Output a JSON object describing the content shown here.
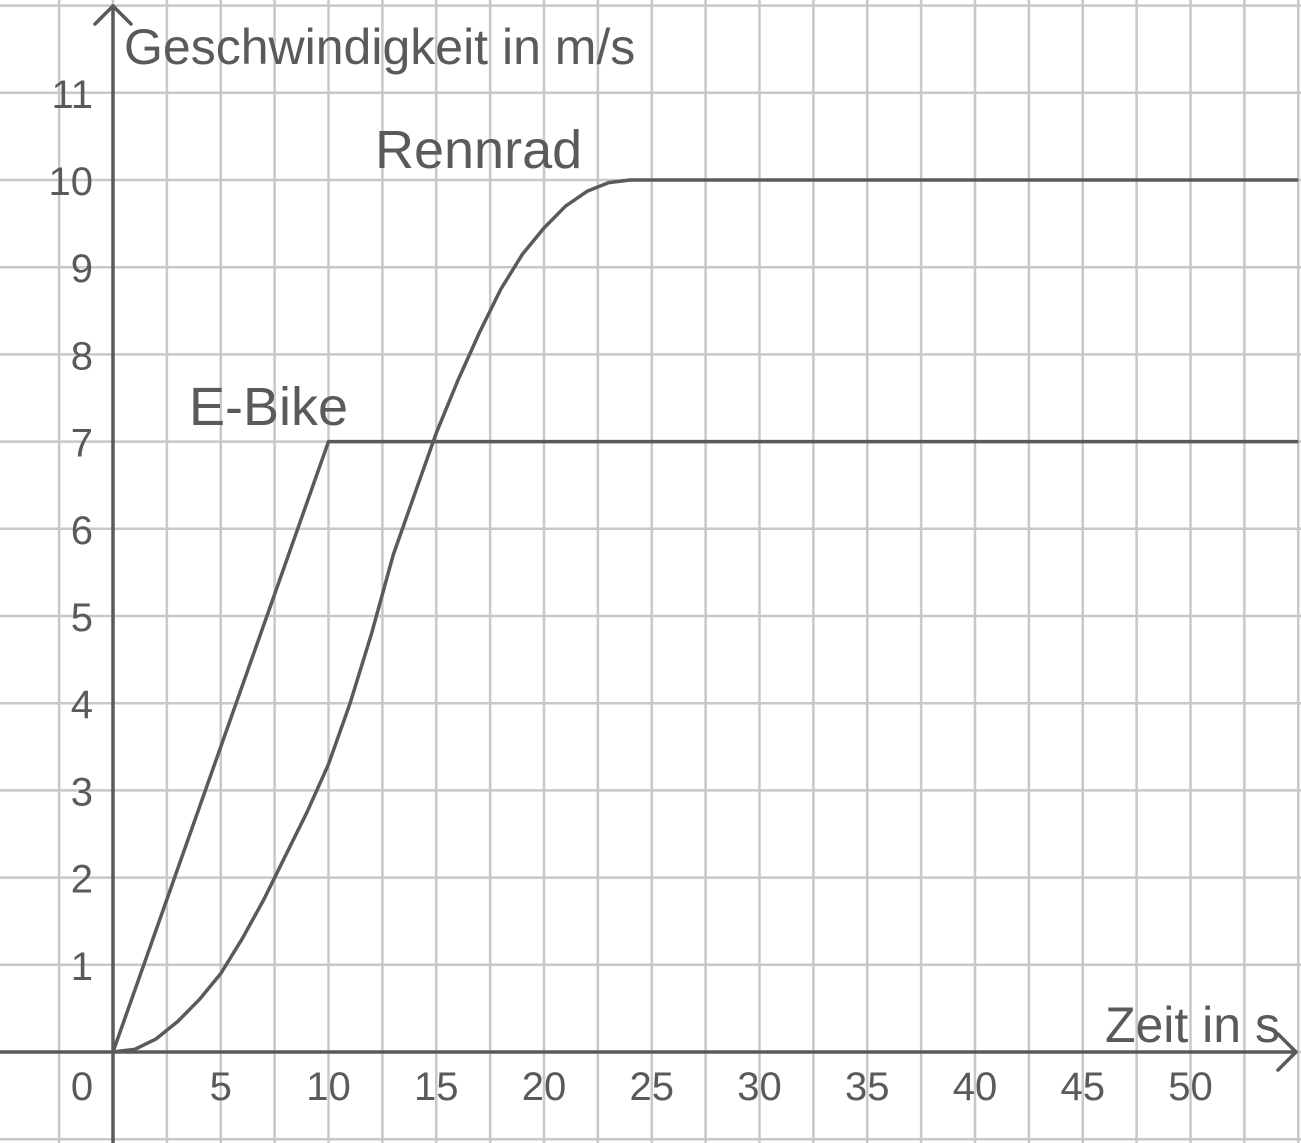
{
  "chart_data": {
    "type": "line",
    "ylabel": "Geschwindigkeit in m/s",
    "xlabel": "Zeit in s",
    "origin_label": "0",
    "xlim": [
      0,
      55
    ],
    "ylim": [
      0,
      11.5
    ],
    "grid": true,
    "x_ticks": [
      5,
      10,
      15,
      20,
      25,
      30,
      35,
      40,
      45,
      50
    ],
    "y_ticks": [
      1,
      2,
      3,
      4,
      5,
      6,
      7,
      8,
      9,
      10,
      11
    ],
    "series": [
      {
        "name": "E-Bike",
        "x": [
          0,
          10,
          55
        ],
        "y": [
          0,
          7,
          7
        ]
      },
      {
        "name": "Rennrad",
        "x": [
          0,
          1,
          2,
          3,
          4,
          5,
          6,
          7,
          8,
          9,
          10,
          11,
          12,
          13,
          14,
          15,
          16,
          17,
          18,
          19,
          20,
          21,
          22,
          23,
          24,
          25,
          30,
          40,
          55
        ],
        "y": [
          0,
          0.03,
          0.15,
          0.35,
          0.6,
          0.9,
          1.3,
          1.75,
          2.25,
          2.75,
          3.3,
          4.0,
          4.8,
          5.7,
          6.4,
          7.1,
          7.7,
          8.25,
          8.75,
          9.15,
          9.45,
          9.7,
          9.87,
          9.97,
          10,
          10,
          10,
          10,
          10
        ]
      }
    ]
  }
}
